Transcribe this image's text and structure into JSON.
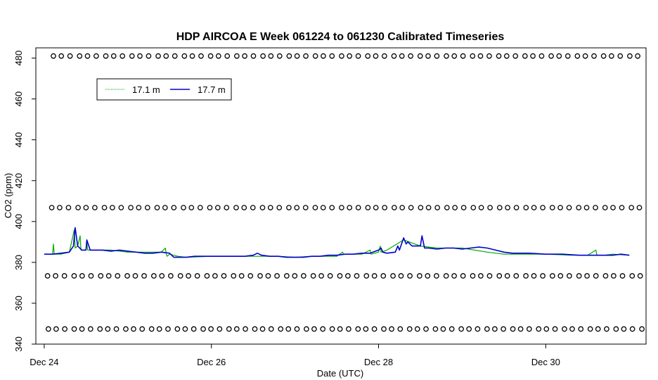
{
  "chart_data": {
    "type": "line",
    "title": "HDP AIRCOA E  Week 061224 to 061230  Calibrated Timeseries",
    "xlabel": "Date (UTC)",
    "ylabel": "CO2 (ppm)",
    "xlim": [
      -0.1,
      7.2
    ],
    "ylim": [
      340,
      485
    ],
    "x_ticks": [
      {
        "value": 0,
        "label": "Dec 24"
      },
      {
        "value": 2,
        "label": "Dec 26"
      },
      {
        "value": 4,
        "label": "Dec 28"
      },
      {
        "value": 6,
        "label": "Dec 30"
      }
    ],
    "y_ticks": [
      340,
      360,
      380,
      400,
      420,
      440,
      460,
      480
    ],
    "legend_position": "top-left",
    "colors": {
      "series_17_1": "#00aa00",
      "series_17_7": "#0000cc",
      "markers": "#000000"
    },
    "series": [
      {
        "name": "17.1 m",
        "color": "#00aa00",
        "x": [
          0.02,
          0.1,
          0.11,
          0.12,
          0.2,
          0.3,
          0.36,
          0.37,
          0.4,
          0.43,
          0.44,
          0.5,
          0.51,
          0.52,
          0.6,
          0.8,
          1.0,
          1.2,
          1.4,
          1.45,
          1.46,
          1.47,
          1.5,
          1.6,
          1.7,
          2.0,
          2.2,
          2.5,
          2.8,
          3.0,
          3.2,
          3.5,
          3.57,
          3.58,
          3.6,
          3.8,
          3.9,
          3.91,
          4.0,
          4.02,
          4.03,
          4.1,
          4.3,
          4.5,
          4.7,
          5.0,
          5.3,
          5.5,
          5.8,
          6.0,
          6.3,
          6.5,
          6.6,
          6.61,
          6.62,
          6.7,
          6.8,
          7.0
        ],
        "y": [
          384,
          384,
          389,
          384,
          384,
          385,
          396,
          387,
          388,
          393,
          386,
          386,
          390,
          386,
          386,
          386,
          385,
          385,
          385,
          387,
          384,
          383,
          384,
          383,
          382.5,
          383,
          383,
          383,
          383,
          382.5,
          383,
          383,
          385,
          384,
          384,
          384,
          386,
          384,
          385,
          388,
          385,
          386,
          391,
          388,
          387,
          387,
          385,
          384,
          384,
          384,
          383.5,
          383.5,
          386,
          384,
          383.5,
          383.5,
          384,
          383.5
        ]
      },
      {
        "name": "17.7 m",
        "color": "#0000cc",
        "x": [
          0.0,
          0.1,
          0.2,
          0.3,
          0.35,
          0.37,
          0.4,
          0.45,
          0.5,
          0.51,
          0.55,
          0.6,
          0.7,
          0.8,
          0.9,
          1.0,
          1.1,
          1.2,
          1.3,
          1.4,
          1.5,
          1.55,
          1.6,
          1.7,
          1.8,
          2.0,
          2.2,
          2.4,
          2.5,
          2.55,
          2.6,
          2.7,
          2.8,
          2.9,
          3.0,
          3.1,
          3.2,
          3.3,
          3.4,
          3.5,
          3.6,
          3.7,
          3.8,
          3.9,
          4.0,
          4.03,
          4.05,
          4.1,
          4.2,
          4.23,
          4.25,
          4.3,
          4.33,
          4.35,
          4.4,
          4.45,
          4.5,
          4.52,
          4.55,
          4.6,
          4.7,
          4.8,
          4.9,
          5.0,
          5.1,
          5.2,
          5.3,
          5.4,
          5.5,
          5.6,
          5.8,
          6.0,
          6.2,
          6.4,
          6.6,
          6.7,
          6.8,
          6.9,
          7.0
        ],
        "y": [
          384,
          384,
          384.5,
          385,
          388,
          397,
          388,
          386,
          386,
          391,
          386,
          386,
          386,
          385.5,
          386,
          385.5,
          385,
          384.5,
          384.5,
          385,
          384.5,
          382.5,
          382.5,
          382.5,
          383,
          383,
          383,
          383,
          383.5,
          384.5,
          383.5,
          383,
          383,
          382.5,
          382.5,
          382.5,
          383,
          383,
          383.5,
          383.5,
          384,
          384,
          384.5,
          384.5,
          386,
          387,
          385,
          384.5,
          385,
          388,
          386,
          392,
          389,
          390,
          388,
          388,
          388,
          393,
          387,
          387,
          386.5,
          387,
          387,
          386.5,
          387,
          387.5,
          387,
          386,
          385,
          384.5,
          384.5,
          384,
          384,
          383.5,
          383.5,
          383.5,
          383.5,
          384,
          383.5
        ]
      }
    ],
    "marker_rows": [
      {
        "y": 481,
        "x_start": 0.1,
        "x_end": 7.1,
        "count": 68
      },
      {
        "y": 406.8,
        "x_start": 0.08,
        "x_end": 7.12,
        "count": 68
      },
      {
        "y": 373.4,
        "x_start": 0.03,
        "x_end": 7.13,
        "count": 68
      },
      {
        "y": 347.4,
        "x_start": 0.04,
        "x_end": 7.14,
        "count": 70
      }
    ]
  }
}
